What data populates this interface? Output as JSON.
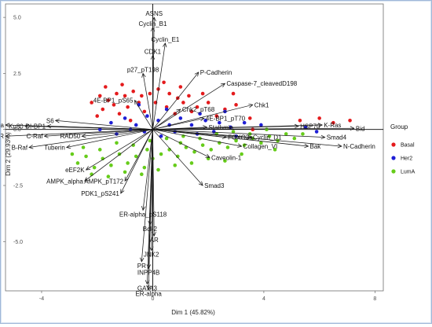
{
  "chart_data": {
    "type": "scatter",
    "subtype": "pca-biplot",
    "xlabel": "Dim 1 (45.82%)",
    "ylabel": "Dim 2 (29.93%)",
    "xlim": [
      -5.3,
      8.3
    ],
    "ylim": [
      -7.2,
      5.6
    ],
    "x_ticks": [
      -4,
      0,
      4,
      8
    ],
    "y_ticks": [
      5.0,
      2.5,
      0.0,
      -2.5,
      -5.0
    ],
    "y_tick_labels": [
      "5.0",
      "2.5",
      "0.0",
      "-2.5",
      "-5.0"
    ],
    "grid": false,
    "legend": {
      "title": "Group",
      "position": "right",
      "entries": [
        {
          "name": "Basal",
          "color": "#e41a1c"
        },
        {
          "name": "Her2",
          "color": "#1f1fd6"
        },
        {
          "name": "LumA",
          "color": "#66cc1a"
        }
      ]
    },
    "series": [
      {
        "name": "Basal",
        "color": "#e41a1c",
        "points": [
          [
            -2.2,
            1.2
          ],
          [
            -1.9,
            1.5
          ],
          [
            -1.6,
            1.3
          ],
          [
            -1.3,
            1.6
          ],
          [
            -1.0,
            1.5
          ],
          [
            -0.7,
            1.7
          ],
          [
            -0.4,
            1.5
          ],
          [
            -0.1,
            1.6
          ],
          [
            0.2,
            1.8
          ],
          [
            0.6,
            1.6
          ],
          [
            1.0,
            1.9
          ],
          [
            1.3,
            1.5
          ],
          [
            -1.8,
            0.9
          ],
          [
            -1.4,
            1.1
          ],
          [
            -0.9,
            1.0
          ],
          [
            -0.5,
            1.2
          ],
          [
            0.1,
            1.2
          ],
          [
            0.5,
            1.0
          ],
          [
            1.1,
            1.2
          ],
          [
            1.6,
            1.0
          ],
          [
            2.0,
            1.2
          ],
          [
            2.6,
            0.9
          ],
          [
            3.0,
            1.1
          ],
          [
            -2.0,
            0.6
          ],
          [
            -1.2,
            0.7
          ],
          [
            -0.3,
            0.8
          ],
          [
            0.8,
            0.7
          ],
          [
            1.4,
            0.8
          ],
          [
            2.3,
            0.6
          ],
          [
            3.5,
            0.5
          ],
          [
            5.3,
            0.4
          ],
          [
            6.0,
            0.5
          ],
          [
            6.5,
            0.3
          ],
          [
            7.1,
            0.4
          ],
          [
            -1.7,
            1.9
          ],
          [
            -1.1,
            2.0
          ],
          [
            0.4,
            2.1
          ],
          [
            0.9,
            1.4
          ],
          [
            1.8,
            1.6
          ],
          [
            -0.8,
            0.4
          ],
          [
            2.9,
            1.6
          ],
          [
            3.6,
            0.0
          ]
        ]
      },
      {
        "name": "Her2",
        "color": "#1f1fd6",
        "points": [
          [
            -1.5,
            0.3
          ],
          [
            -1.0,
            0.5
          ],
          [
            -0.6,
            0.2
          ],
          [
            -0.2,
            0.6
          ],
          [
            0.2,
            0.4
          ],
          [
            0.6,
            0.2
          ],
          [
            1.0,
            0.5
          ],
          [
            1.4,
            0.2
          ],
          [
            1.9,
            0.4
          ],
          [
            2.4,
            0.3
          ],
          [
            2.8,
            0.1
          ],
          [
            3.3,
            0.3
          ],
          [
            -1.3,
            -0.2
          ],
          [
            -0.8,
            0.0
          ],
          [
            -0.3,
            -0.1
          ],
          [
            0.3,
            -0.3
          ],
          [
            0.8,
            -0.1
          ],
          [
            1.6,
            -0.2
          ],
          [
            2.2,
            -0.1
          ],
          [
            3.0,
            -0.3
          ],
          [
            3.9,
            0.2
          ],
          [
            5.5,
            0.1
          ],
          [
            5.9,
            -0.1
          ],
          [
            -0.5,
            1.1
          ],
          [
            0.5,
            0.9
          ],
          [
            1.7,
            0.7
          ],
          [
            -1.9,
            0.0
          ],
          [
            2.6,
            0.8
          ]
        ]
      },
      {
        "name": "LumA",
        "color": "#66cc1a",
        "points": [
          [
            -2.7,
            -1.5
          ],
          [
            -2.4,
            -1.2
          ],
          [
            -2.1,
            -1.7
          ],
          [
            -1.8,
            -1.3
          ],
          [
            -1.5,
            -1.6
          ],
          [
            -1.2,
            -1.1
          ],
          [
            -0.9,
            -1.5
          ],
          [
            -0.6,
            -1.2
          ],
          [
            -0.3,
            -1.7
          ],
          [
            0.0,
            -1.3
          ],
          [
            0.3,
            -1.1
          ],
          [
            0.6,
            -0.9
          ],
          [
            0.9,
            -1.2
          ],
          [
            1.2,
            -0.8
          ],
          [
            1.5,
            -1.0
          ],
          [
            1.8,
            -0.7
          ],
          [
            2.1,
            -0.9
          ],
          [
            2.4,
            -0.6
          ],
          [
            2.7,
            -0.8
          ],
          [
            3.0,
            -0.5
          ],
          [
            3.3,
            -0.7
          ],
          [
            3.6,
            -0.4
          ],
          [
            3.9,
            -0.6
          ],
          [
            4.2,
            -0.3
          ],
          [
            4.5,
            -0.5
          ],
          [
            4.8,
            -0.2
          ],
          [
            5.1,
            -0.4
          ],
          [
            5.4,
            -0.2
          ],
          [
            -2.5,
            -0.8
          ],
          [
            -1.9,
            -0.9
          ],
          [
            -1.3,
            -0.6
          ],
          [
            -0.7,
            -0.7
          ],
          [
            -0.1,
            -0.5
          ],
          [
            0.5,
            -0.4
          ],
          [
            1.1,
            -0.3
          ],
          [
            1.7,
            -0.4
          ],
          [
            2.3,
            -0.2
          ],
          [
            2.9,
            -0.1
          ],
          [
            3.5,
            -0.2
          ],
          [
            4.1,
            0.0
          ],
          [
            -2.2,
            -2.0
          ],
          [
            -1.6,
            -2.1
          ],
          [
            -1.0,
            -1.9
          ],
          [
            -0.4,
            -2.0
          ],
          [
            0.2,
            -1.8
          ],
          [
            0.8,
            -1.6
          ],
          [
            1.4,
            -1.5
          ],
          [
            2.0,
            -1.3
          ],
          [
            2.6,
            -1.4
          ],
          [
            3.2,
            -1.1
          ],
          [
            -2.9,
            -1.1
          ],
          [
            4.4,
            -0.9
          ],
          [
            1.0,
            -0.6
          ],
          [
            -0.2,
            -0.9
          ]
        ]
      }
    ],
    "variables": [
      {
        "name": "ASNS",
        "x": 0.05,
        "y": 5.0
      },
      {
        "name": "Cyclin_B1",
        "x": 0.0,
        "y": 4.55
      },
      {
        "name": "Cyclin_E1",
        "x": 0.45,
        "y": 3.85
      },
      {
        "name": "CDK1",
        "x": 0.0,
        "y": 3.3
      },
      {
        "name": "P-Cadherin",
        "x": 1.65,
        "y": 2.55
      },
      {
        "name": "p27_pT198",
        "x": -0.35,
        "y": 2.5
      },
      {
        "name": "Caspase-7_cleavedD198",
        "x": 2.6,
        "y": 2.05
      },
      {
        "name": "4E-BP1_pS65",
        "x": -0.65,
        "y": 1.3
      },
      {
        "name": "Chk1",
        "x": 3.6,
        "y": 1.1
      },
      {
        "name": "Chk2_pT68",
        "x": 1.0,
        "y": 0.9
      },
      {
        "name": "4E-BP1_pT70",
        "x": 1.85,
        "y": 0.5
      },
      {
        "name": "Stathmin",
        "x": 1.95,
        "y": 0.1
      },
      {
        "name": "HSP70",
        "x": 5.25,
        "y": 0.15
      },
      {
        "name": "K-Ras",
        "x": 6.1,
        "y": 0.2
      },
      {
        "name": "Bid",
        "x": 7.25,
        "y": 0.05
      },
      {
        "name": "Smad4",
        "x": 6.2,
        "y": -0.35
      },
      {
        "name": "FOXO3a",
        "x": 2.65,
        "y": -0.35
      },
      {
        "name": "Cyclin_D1",
        "x": 3.55,
        "y": -0.35
      },
      {
        "name": "Collagen_VI",
        "x": 3.2,
        "y": -0.75
      },
      {
        "name": "Bak",
        "x": 5.6,
        "y": -0.75
      },
      {
        "name": "N-Cadherin",
        "x": 6.8,
        "y": -0.75
      },
      {
        "name": "Caveolin-1",
        "x": 2.05,
        "y": -1.25
      },
      {
        "name": "pha-beta",
        "x": -5.3,
        "y": 0.2
      },
      {
        "name": "TOR",
        "x": -5.3,
        "y": -0.3
      },
      {
        "name": "Ku80",
        "x": -4.6,
        "y": 0.15
      },
      {
        "name": "DI-BP1",
        "x": -3.8,
        "y": 0.15
      },
      {
        "name": "S6",
        "x": -3.5,
        "y": 0.4
      },
      {
        "name": "C-Raf",
        "x": -3.9,
        "y": -0.3
      },
      {
        "name": "B-Raf",
        "x": -4.45,
        "y": -0.8
      },
      {
        "name": "Tuberin",
        "x": -3.1,
        "y": -0.8
      },
      {
        "name": "RAD50",
        "x": -2.55,
        "y": -0.3
      },
      {
        "name": "eEF2K",
        "x": -2.4,
        "y": -1.8
      },
      {
        "name": "AMPK_alpha",
        "x": -2.45,
        "y": -2.3
      },
      {
        "name": "AMPK_pT172",
        "x": -1.0,
        "y": -2.3
      },
      {
        "name": "PDK1_pS241",
        "x": -1.15,
        "y": -2.85
      },
      {
        "name": "Smad3",
        "x": 1.8,
        "y": -2.5
      },
      {
        "name": "ER-alpha_pS118",
        "x": -0.35,
        "y": -3.6
      },
      {
        "name": "Bcl-2",
        "x": -0.1,
        "y": -4.25
      },
      {
        "name": "AR",
        "x": 0.05,
        "y": -4.75
      },
      {
        "name": "JNK2",
        "x": -0.05,
        "y": -5.4
      },
      {
        "name": "PR",
        "x": -0.4,
        "y": -5.9
      },
      {
        "name": "INPP4B",
        "x": -0.15,
        "y": -6.2
      },
      {
        "name": "GATA3",
        "x": -0.2,
        "y": -6.9
      },
      {
        "name": "ER-alpha",
        "x": -0.15,
        "y": -7.15
      }
    ]
  }
}
